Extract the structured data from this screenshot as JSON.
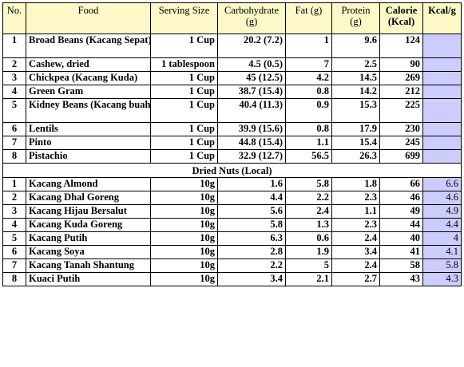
{
  "headers": {
    "no": "No.",
    "food": "Food",
    "serving": "Serving Size",
    "carb": "Carbohydrate (g)",
    "fat": "Fat (g)",
    "protein": "Protein (g)",
    "calorie": "Calorie (Kcal)",
    "kcalg": "Kcal/g"
  },
  "legumes": [
    {
      "no": "1",
      "food": "Broad Beans (Kacang Sepat)",
      "serving": "1 Cup",
      "carb": "20.2 (7.2)",
      "fat": "1",
      "protein": "9.6",
      "calorie": "124",
      "kcalg": "",
      "tall": true
    },
    {
      "no": "2",
      "food": "Cashew, dried",
      "serving": "1 tablespoon",
      "carb": "4.5 (0.5)",
      "fat": "7",
      "protein": "2.5",
      "calorie": "90",
      "kcalg": "",
      "tall": false
    },
    {
      "no": "3",
      "food": "Chickpea (Kacang Kuda)",
      "serving": "1 Cup",
      "carb": "45 (12.5)",
      "fat": "4.2",
      "protein": "14.5",
      "calorie": "269",
      "kcalg": "",
      "tall": false
    },
    {
      "no": "4",
      "food": "Green Gram",
      "serving": "1 Cup",
      "carb": "38.7 (15.4)",
      "fat": "0.8",
      "protein": "14.2",
      "calorie": "212",
      "kcalg": "",
      "tall": false
    },
    {
      "no": "5",
      "food": "Kidney Beans (Kacang buah pinggang)",
      "serving": "1 Cup",
      "carb": "40.4 (11.3)",
      "fat": "0.9",
      "protein": "15.3",
      "calorie": "225",
      "kcalg": "",
      "tall": true
    },
    {
      "no": "6",
      "food": "Lentils",
      "serving": "1 Cup",
      "carb": "39.9 (15.6)",
      "fat": "0.8",
      "protein": "17.9",
      "calorie": "230",
      "kcalg": "",
      "tall": false
    },
    {
      "no": "7",
      "food": "Pinto",
      "serving": "1 Cup",
      "carb": "44.8 (15.4)",
      "fat": "1.1",
      "protein": "15.4",
      "calorie": "245",
      "kcalg": "",
      "tall": false
    },
    {
      "no": "8",
      "food": "Pistachio",
      "serving": "1 Cup",
      "carb": "32.9 (12.7)",
      "fat": "56.5",
      "protein": "26.3",
      "calorie": "699",
      "kcalg": "",
      "tall": false
    }
  ],
  "section_title": "Dried Nuts (Local)",
  "nuts": [
    {
      "no": "1",
      "food": "Kacang Almond",
      "serving": "10g",
      "carb": "1.6",
      "fat": "5.8",
      "protein": "1.8",
      "calorie": "66",
      "kcalg": "6.6"
    },
    {
      "no": "2",
      "food": "Kacang Dhal Goreng",
      "serving": "10g",
      "carb": "4.4",
      "fat": "2.2",
      "protein": "2.3",
      "calorie": "46",
      "kcalg": "4.6"
    },
    {
      "no": "3",
      "food": "Kacang Hijau Bersalut",
      "serving": "10g",
      "carb": "5.6",
      "fat": "2.4",
      "protein": "1.1",
      "calorie": "49",
      "kcalg": "4.9"
    },
    {
      "no": "4",
      "food": "Kacang Kuda Goreng",
      "serving": "10g",
      "carb": "5.8",
      "fat": "1.3",
      "protein": "2.3",
      "calorie": "44",
      "kcalg": "4.4"
    },
    {
      "no": "5",
      "food": "Kacang Putih",
      "serving": "10g",
      "carb": "6.3",
      "fat": "0.6",
      "protein": "2.4",
      "calorie": "40",
      "kcalg": "4"
    },
    {
      "no": "6",
      "food": "Kacang Soya",
      "serving": "10g",
      "carb": "2.8",
      "fat": "1.9",
      "protein": "3.4",
      "calorie": "41",
      "kcalg": "4.1"
    },
    {
      "no": "7",
      "food": "Kacang Tanah Shantung",
      "serving": "10g",
      "carb": "2.2",
      "fat": "5",
      "protein": "2.4",
      "calorie": "58",
      "kcalg": "5.8"
    },
    {
      "no": "8",
      "food": "Kuaci Putih",
      "serving": "10g",
      "carb": "3.4",
      "fat": "2.1",
      "protein": "2.7",
      "calorie": "43",
      "kcalg": "4.3"
    }
  ]
}
